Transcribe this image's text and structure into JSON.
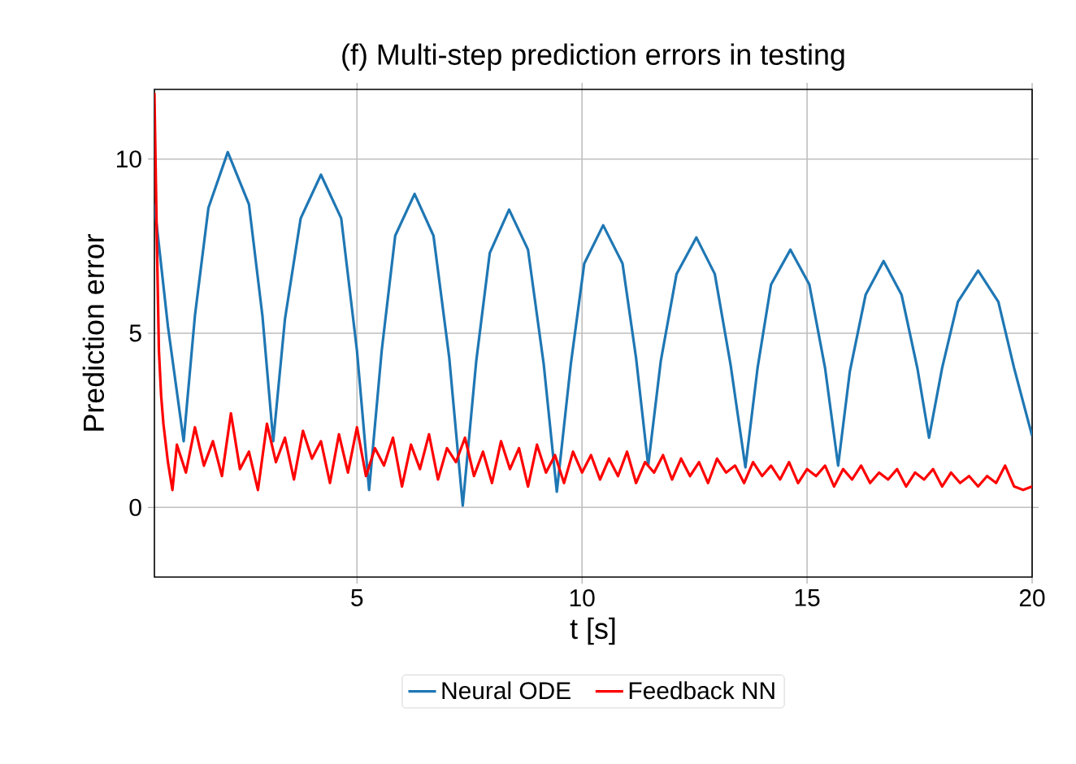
{
  "chart_data": {
    "type": "line",
    "title": "(f) Multi-step prediction errors in testing",
    "xlabel": "t [s]",
    "ylabel": "Prediction error",
    "xlim": [
      0.5,
      20
    ],
    "ylim": [
      -2,
      12
    ],
    "xticks": [
      5,
      10,
      15,
      20
    ],
    "yticks": [
      0,
      5,
      10
    ],
    "grid": true,
    "legend": "bottom",
    "marker": "none",
    "line_style": "solid",
    "series": [
      {
        "name": "Neural ODE",
        "color": "#1f77b4",
        "x": [
          0.5,
          0.8,
          1.15,
          1.4,
          1.7,
          2.13,
          2.6,
          2.9,
          3.14,
          3.4,
          3.75,
          4.2,
          4.65,
          5.0,
          5.27,
          5.55,
          5.85,
          6.28,
          6.7,
          7.05,
          7.35,
          7.65,
          7.95,
          8.38,
          8.8,
          9.15,
          9.44,
          9.75,
          10.05,
          10.47,
          10.9,
          11.2,
          11.47,
          11.75,
          12.1,
          12.54,
          12.95,
          13.3,
          13.63,
          13.9,
          14.2,
          14.63,
          15.05,
          15.4,
          15.69,
          15.95,
          16.3,
          16.7,
          17.1,
          17.45,
          17.71,
          18.0,
          18.35,
          18.8,
          19.25,
          19.6,
          20
        ],
        "values": [
          8.7,
          5.2,
          1.9,
          5.5,
          8.6,
          10.2,
          8.7,
          5.5,
          1.9,
          5.4,
          8.3,
          9.55,
          8.3,
          4.5,
          0.5,
          4.5,
          7.8,
          9.0,
          7.8,
          4.3,
          0.05,
          4.2,
          7.3,
          8.55,
          7.4,
          4.1,
          0.45,
          4.1,
          7.0,
          8.1,
          7.0,
          4.3,
          1.2,
          4.2,
          6.7,
          7.75,
          6.7,
          4.1,
          1.15,
          4.0,
          6.4,
          7.4,
          6.4,
          4.0,
          1.2,
          3.9,
          6.1,
          7.07,
          6.1,
          4.0,
          2.0,
          4.0,
          5.9,
          6.8,
          5.9,
          4.0,
          2.05
        ]
      },
      {
        "name": "Feedback NN",
        "color": "#ff0000",
        "x": [
          0.5,
          0.55,
          0.6,
          0.65,
          0.7,
          0.8,
          0.9,
          1.0,
          1.2,
          1.4,
          1.6,
          1.8,
          2.0,
          2.2,
          2.4,
          2.6,
          2.8,
          3.0,
          3.2,
          3.4,
          3.6,
          3.8,
          4.0,
          4.2,
          4.4,
          4.6,
          4.8,
          5.0,
          5.2,
          5.4,
          5.6,
          5.8,
          6.0,
          6.2,
          6.4,
          6.6,
          6.8,
          7.0,
          7.2,
          7.4,
          7.6,
          7.8,
          8.0,
          8.2,
          8.4,
          8.6,
          8.8,
          9.0,
          9.2,
          9.4,
          9.6,
          9.8,
          10.0,
          10.2,
          10.4,
          10.6,
          10.8,
          11.0,
          11.2,
          11.4,
          11.6,
          11.8,
          12.0,
          12.2,
          12.4,
          12.6,
          12.8,
          13.0,
          13.2,
          13.4,
          13.6,
          13.8,
          14.0,
          14.2,
          14.4,
          14.6,
          14.8,
          15.0,
          15.2,
          15.4,
          15.6,
          15.8,
          16.0,
          16.2,
          16.4,
          16.6,
          16.8,
          17.0,
          17.2,
          17.4,
          17.6,
          17.8,
          18.0,
          18.2,
          18.4,
          18.6,
          18.8,
          19.0,
          19.2,
          19.4,
          19.6,
          19.8,
          20.0
        ],
        "values": [
          11.9,
          8,
          4.5,
          3.2,
          2.4,
          1.3,
          0.5,
          1.8,
          1.0,
          2.3,
          1.2,
          1.9,
          0.9,
          2.7,
          1.1,
          1.6,
          0.5,
          2.4,
          1.3,
          2.0,
          0.8,
          2.2,
          1.4,
          1.9,
          0.7,
          2.1,
          1.0,
          2.3,
          0.9,
          1.7,
          1.2,
          2.0,
          0.6,
          1.8,
          1.1,
          2.1,
          0.8,
          1.7,
          1.3,
          2.0,
          0.9,
          1.6,
          0.7,
          1.9,
          1.1,
          1.7,
          0.6,
          1.8,
          1.0,
          1.5,
          0.7,
          1.6,
          1.0,
          1.5,
          0.8,
          1.4,
          0.9,
          1.6,
          0.7,
          1.3,
          1.0,
          1.5,
          0.8,
          1.4,
          0.9,
          1.3,
          0.7,
          1.4,
          1.0,
          1.2,
          0.7,
          1.3,
          0.9,
          1.2,
          0.8,
          1.3,
          0.7,
          1.1,
          0.9,
          1.2,
          0.6,
          1.1,
          0.8,
          1.2,
          0.7,
          1.0,
          0.8,
          1.1,
          0.6,
          1.0,
          0.8,
          1.1,
          0.6,
          1.0,
          0.7,
          0.9,
          0.6,
          0.9,
          0.7,
          1.2,
          0.6,
          0.5,
          0.6
        ]
      }
    ]
  }
}
